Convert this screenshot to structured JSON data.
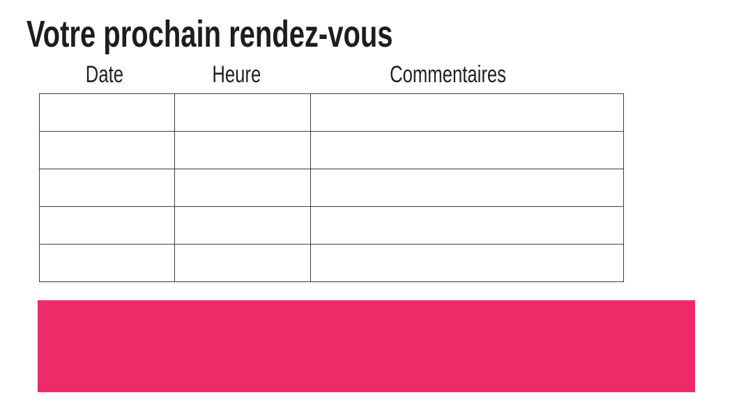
{
  "page": {
    "title": "Votre prochain rendez-vous"
  },
  "table": {
    "headers": [
      "Date",
      "Heure",
      "Commentaires"
    ],
    "rows": [
      {
        "date": "",
        "heure": "",
        "commentaires": ""
      },
      {
        "date": "",
        "heure": "",
        "commentaires": ""
      },
      {
        "date": "",
        "heure": "",
        "commentaires": ""
      },
      {
        "date": "",
        "heure": "",
        "commentaires": ""
      },
      {
        "date": "",
        "heure": "",
        "commentaires": ""
      }
    ]
  },
  "colors": {
    "accent_pink": "#EE2B69",
    "table_border": "#3C3C3C",
    "text": "#1D1D1B"
  }
}
